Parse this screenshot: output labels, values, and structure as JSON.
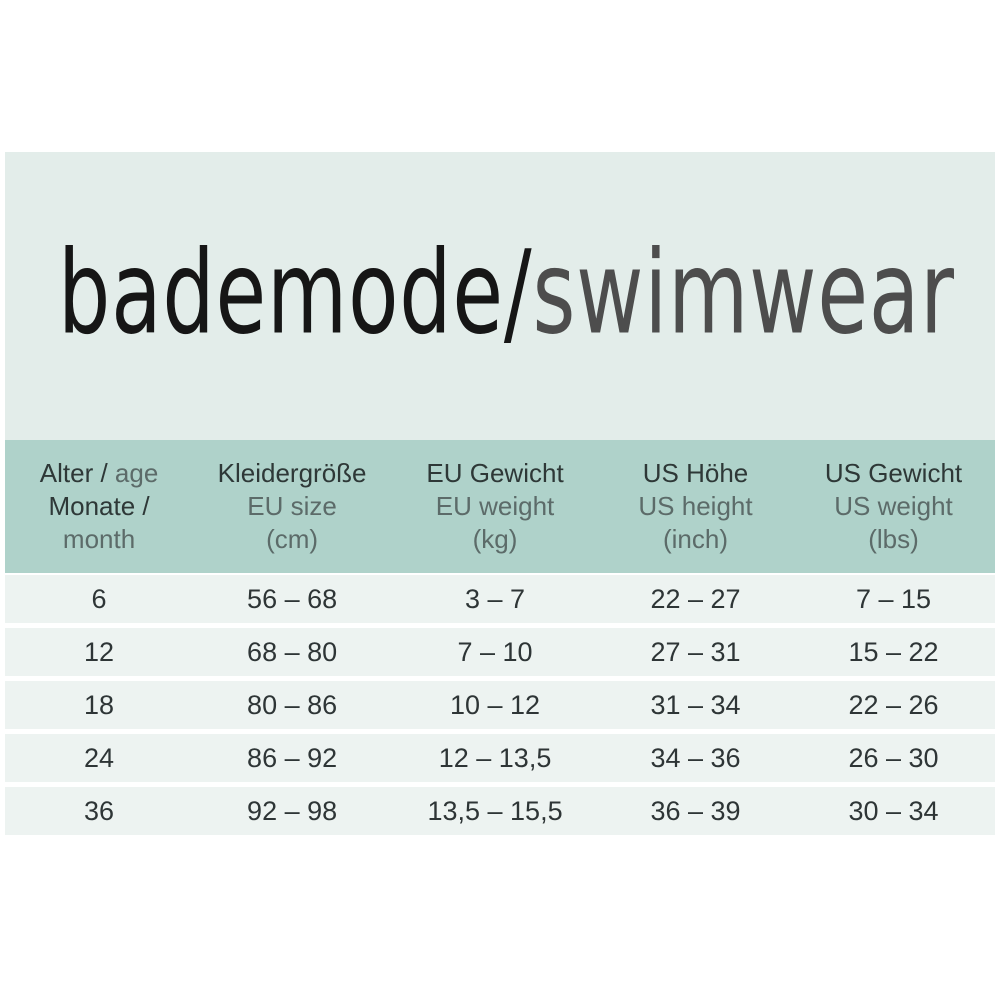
{
  "title": {
    "german": "bademode",
    "slash": "/",
    "english": "swimwear"
  },
  "colors": {
    "hero_band": "#e3edea",
    "header_band": "#afd2ca",
    "row_background": "#edf3f1",
    "header_dark_text": "#2e3837",
    "header_gray_text": "#5c6b69",
    "title_black": "#161616",
    "title_gray": "#4d4d4d"
  },
  "table": {
    "header": [
      {
        "dark1": "Alter /",
        "gray1": "age",
        "dark2": "Monate /",
        "gray2": "",
        "gray3": "month"
      },
      {
        "dark1": "Kleidergröße",
        "gray1": "",
        "dark2": "",
        "gray2": "EU size",
        "gray3": "(cm)"
      },
      {
        "dark1": "EU Gewicht",
        "gray1": "",
        "dark2": "",
        "gray2": "EU weight",
        "gray3": "(kg)"
      },
      {
        "dark1": "US Höhe",
        "gray1": "",
        "dark2": "",
        "gray2": "US height",
        "gray3": "(inch)"
      },
      {
        "dark1": "US Gewicht",
        "gray1": "",
        "dark2": "",
        "gray2": "US weight",
        "gray3": "(lbs)"
      }
    ],
    "rows": [
      [
        "6",
        "56 – 68",
        "3 – 7",
        "22 – 27",
        "7 – 15"
      ],
      [
        "12",
        "68 – 80",
        "7 – 10",
        "27 – 31",
        "15 – 22"
      ],
      [
        "18",
        "80 – 86",
        "10 – 12",
        "31 – 34",
        "22 – 26"
      ],
      [
        "24",
        "86 – 92",
        "12 – 13,5",
        "34 – 36",
        "26 – 30"
      ],
      [
        "36",
        "92 – 98",
        "13,5 – 15,5",
        "36 – 39",
        "30 – 34"
      ]
    ]
  }
}
